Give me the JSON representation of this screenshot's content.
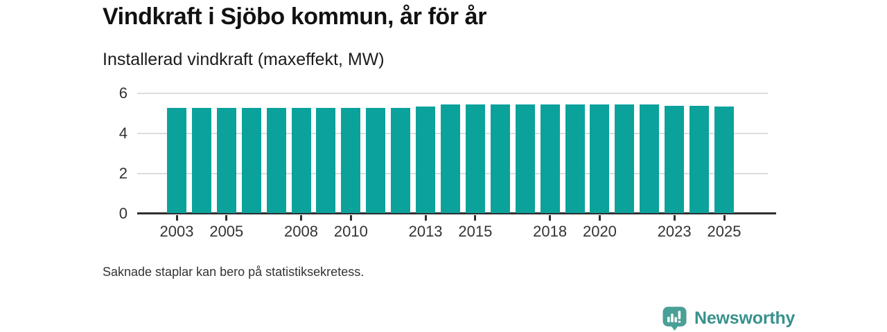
{
  "header": {
    "title": "Vindkraft i Sjöbo kommun, år för år",
    "subtitle": "Installerad vindkraft (maxeffekt, MW)"
  },
  "footer": {
    "note": "Saknade staplar kan bero på statistiksekretess.",
    "brand": "Newsworthy"
  },
  "colors": {
    "bar": "#0ca29c",
    "axis": "#2e2e2e",
    "grid": "#dcdcdc",
    "text": "#333333",
    "title_text": "#111111",
    "logo_bubble": "#4aa096",
    "brand_text": "#38918d"
  },
  "chart_data": {
    "type": "bar",
    "title": "Vindkraft i Sjöbo kommun, år för år",
    "subtitle": "Installerad vindkraft (maxeffekt, MW)",
    "categories": [
      "2003",
      "2004",
      "2005",
      "2006",
      "2007",
      "2008",
      "2009",
      "2010",
      "2011",
      "2012",
      "2013",
      "2014",
      "2015",
      "2016",
      "2017",
      "2018",
      "2019",
      "2020",
      "2021",
      "2022",
      "2023",
      "2024",
      "2025"
    ],
    "values": [
      5.25,
      5.25,
      5.25,
      5.25,
      5.25,
      5.25,
      5.25,
      5.25,
      5.25,
      5.25,
      5.3,
      5.4,
      5.4,
      5.4,
      5.4,
      5.4,
      5.4,
      5.4,
      5.4,
      5.4,
      5.35,
      5.35,
      5.3
    ],
    "xlabel": "",
    "ylabel": "Installerad vindkraft (maxeffekt, MW)",
    "ylim": [
      0,
      6
    ],
    "yticks": [
      0,
      2,
      4,
      6
    ],
    "xtick_labels": [
      "2003",
      "2005",
      "2008",
      "2010",
      "2013",
      "2015",
      "2018",
      "2020",
      "2023",
      "2025"
    ],
    "grid": "horizontal",
    "legend": "none",
    "bar_color": "#0ca29c"
  }
}
